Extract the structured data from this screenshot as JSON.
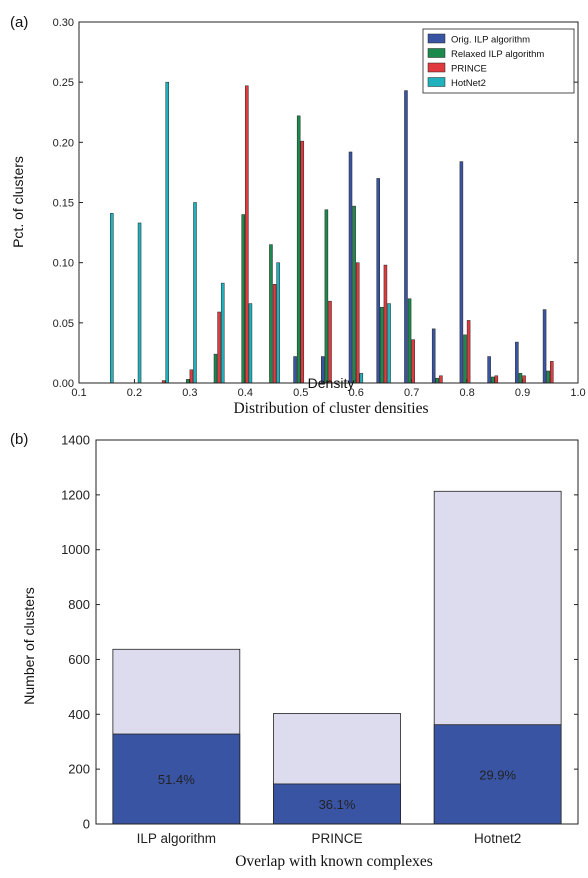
{
  "chart_data": [
    {
      "type": "bar",
      "panel_label": "(a)",
      "caption": "Distribution of cluster densities",
      "xlabel": "Density",
      "ylabel": "Pct. of clusters",
      "xlim": [
        0.1,
        1.0
      ],
      "ylim": [
        0,
        0.3
      ],
      "xticks": [
        "0.1",
        "0.2",
        "0.3",
        "0.4",
        "0.5",
        "0.6",
        "0.7",
        "0.8",
        "0.9",
        "1.0"
      ],
      "yticks": [
        "0.00",
        "0.05",
        "0.10",
        "0.15",
        "0.20",
        "0.25",
        "0.30"
      ],
      "legend_position": "top-right",
      "bins": [
        0.15,
        0.2,
        0.25,
        0.3,
        0.35,
        0.4,
        0.45,
        0.5,
        0.55,
        0.6,
        0.65,
        0.7,
        0.75,
        0.8,
        0.85,
        0.9,
        0.95
      ],
      "series": [
        {
          "name": "Orig. ILP algorithm",
          "color": "#3a54a4",
          "values": [
            0,
            0,
            0,
            0,
            0,
            0,
            0,
            0.022,
            0.022,
            0.192,
            0.17,
            0.243,
            0.045,
            0.184,
            0.022,
            0.034,
            0.061
          ]
        },
        {
          "name": "Relaxed ILP algorithm",
          "color": "#1b8a4c",
          "values": [
            0,
            0,
            0,
            0.003,
            0.024,
            0.14,
            0.115,
            0.222,
            0.144,
            0.147,
            0.063,
            0.07,
            0.004,
            0.04,
            0.005,
            0.008,
            0.01
          ]
        },
        {
          "name": "PRINCE",
          "color": "#e03a3e",
          "values": [
            0,
            0,
            0.002,
            0.011,
            0.059,
            0.247,
            0.082,
            0.201,
            0.068,
            0.1,
            0.098,
            0.036,
            0.006,
            0.052,
            0.006,
            0.006,
            0.018
          ]
        },
        {
          "name": "HotNet2",
          "color": "#1fb2bd",
          "values": [
            0.141,
            0.133,
            0.25,
            0.15,
            0.083,
            0.066,
            0.1,
            0,
            0,
            0.008,
            0.066,
            0,
            0,
            0,
            0,
            0,
            0
          ]
        }
      ]
    },
    {
      "type": "bar",
      "stacked": true,
      "panel_label": "(b)",
      "caption": "Overlap with known complexes",
      "xlabel": "",
      "ylabel": "Number of clusters",
      "ylim": [
        0,
        1400
      ],
      "yticks": [
        "0",
        "200",
        "400",
        "600",
        "800",
        "1000",
        "1200",
        "1400"
      ],
      "categories": [
        "ILP algorithm",
        "PRINCE",
        "Hotnet2"
      ],
      "overlap_values": [
        328,
        146,
        362
      ],
      "total_values": [
        637,
        403,
        1213
      ],
      "overlap_labels": [
        "51.4%",
        "36.1%",
        "29.9%"
      ],
      "overlap_color": "#3a54a4",
      "total_color": "#dcdcee"
    }
  ]
}
